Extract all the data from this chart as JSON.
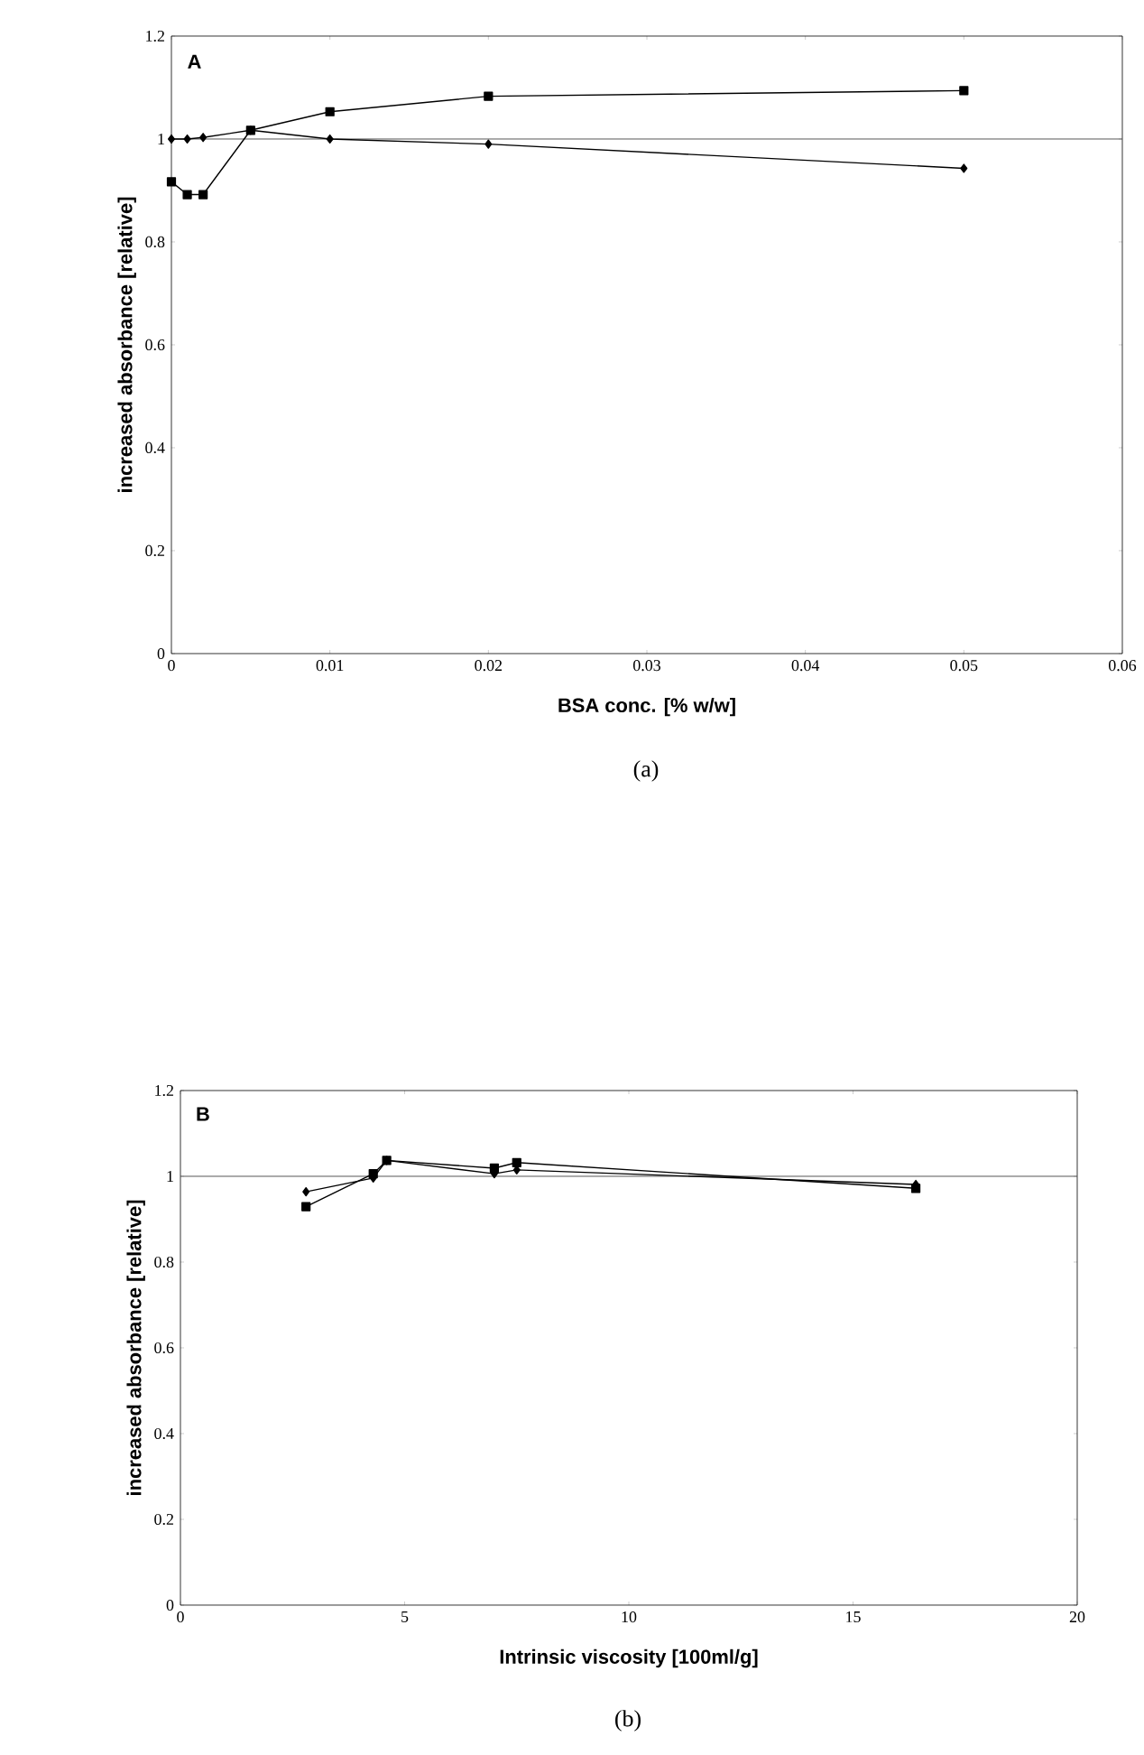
{
  "chart_data": [
    {
      "type": "line",
      "xlabel": "BSA conc. [% w/w]",
      "ylabel": "increased absorbance [relative]",
      "annotations": [
        "A",
        "(a)"
      ],
      "xlim": [
        0,
        0.06
      ],
      "ylim": [
        0,
        1.2
      ],
      "xticks": [
        0,
        0.01,
        0.02,
        0.03,
        0.04,
        0.05,
        0.06
      ],
      "yticks": [
        0,
        0.2,
        0.4,
        0.6,
        0.8,
        1,
        1.2
      ],
      "line_style": "solid",
      "ref_lines": [
        {
          "axis": "y",
          "value": 1,
          "color": "#555555"
        }
      ],
      "series": [
        {
          "color": "#000000",
          "marker": "square",
          "x": [
            0,
            0.001,
            0.002,
            0.005,
            0.01,
            0.02,
            0.05
          ],
          "values": [
            0.917,
            0.892,
            0.892,
            1.017,
            1.053,
            1.083,
            1.094
          ]
        },
        {
          "color": "#000000",
          "marker": "diamond",
          "x": [
            0,
            0.001,
            0.002,
            0.005,
            0.01,
            0.02,
            0.05
          ],
          "values": [
            1.0,
            1.0,
            1.003,
            1.017,
            1.0,
            0.99,
            0.943
          ]
        }
      ]
    },
    {
      "type": "line",
      "xlabel": "Intrinsic viscosity [100ml/g]",
      "ylabel": "increased absorbance [relative]",
      "annotations": [
        "B",
        "(b)"
      ],
      "xlim": [
        0,
        20
      ],
      "ylim": [
        0,
        1.2
      ],
      "xticks": [
        0,
        5,
        10,
        15,
        20
      ],
      "yticks": [
        0,
        0.2,
        0.4,
        0.6,
        0.8,
        1,
        1.2
      ],
      "line_style": "solid",
      "ref_lines": [
        {
          "axis": "y",
          "value": 1,
          "color": "#555555"
        }
      ],
      "series": [
        {
          "color": "#000000",
          "marker": "square",
          "x": [
            2.8,
            4.3,
            4.6,
            7.0,
            7.5,
            16.4
          ],
          "values": [
            0.929,
            1.006,
            1.037,
            1.019,
            1.032,
            0.972
          ]
        },
        {
          "color": "#000000",
          "marker": "diamond",
          "x": [
            2.8,
            4.3,
            4.6,
            7.0,
            7.5,
            16.4
          ],
          "values": [
            0.964,
            0.996,
            1.037,
            1.006,
            1.015,
            0.981
          ]
        }
      ]
    }
  ]
}
